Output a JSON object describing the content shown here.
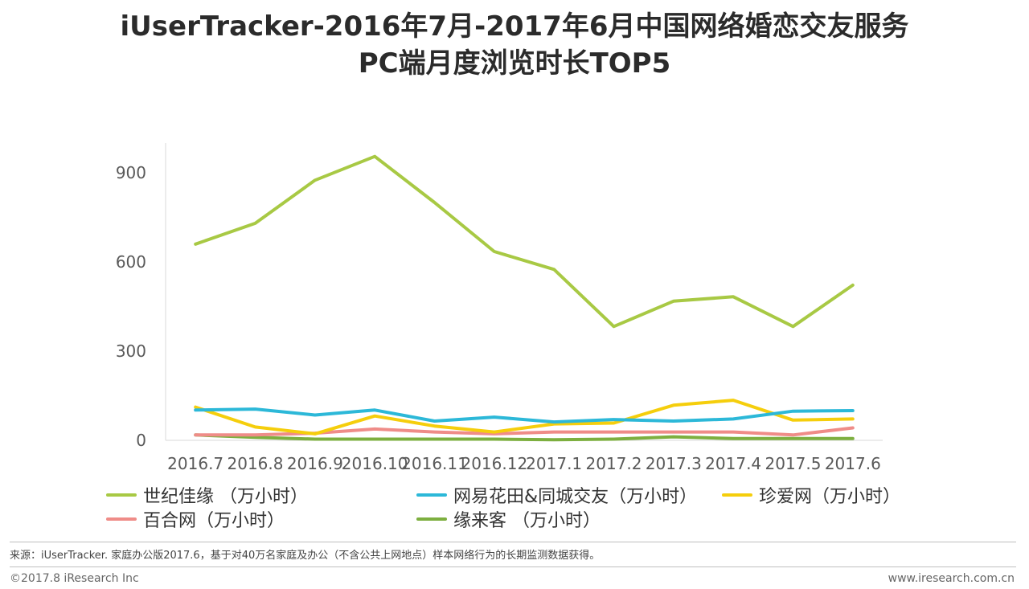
{
  "header": {
    "title_line1": "iUserTracker-2016年7月-2017年6月中国网络婚恋交友服务",
    "title_line2": "PC端月度浏览时长TOP5"
  },
  "chart_data": {
    "type": "line",
    "title": "iUserTracker-2016年7月-2017年6月中国网络婚恋交友服务PC端月度浏览时长TOP5",
    "categories": [
      "2016.7",
      "2016.8",
      "2016.9",
      "2016.10",
      "2016.11",
      "2016.12",
      "2017.1",
      "2017.2",
      "2017.3",
      "2017.4",
      "2017.5",
      "2017.6"
    ],
    "yticks": [
      0,
      300,
      600,
      900
    ],
    "ylim": [
      0,
      1000
    ],
    "xlabel": "",
    "ylabel": "",
    "grid": false,
    "series": [
      {
        "name": "世纪佳缘 （万小时）",
        "color": "#a8c944",
        "values": [
          660,
          730,
          875,
          955,
          800,
          635,
          575,
          383,
          468,
          483,
          383,
          522
        ]
      },
      {
        "name": "网易花田&同城交友（万小时）",
        "color": "#2cb8d8",
        "values": [
          102,
          105,
          85,
          102,
          65,
          78,
          62,
          70,
          65,
          72,
          98,
          100
        ]
      },
      {
        "name": "珍爱网（万小时）",
        "color": "#f5ce0c",
        "values": [
          112,
          45,
          22,
          82,
          48,
          28,
          55,
          58,
          118,
          135,
          68,
          72
        ]
      },
      {
        "name": "百合网（万小时）",
        "color": "#ef8c88",
        "values": [
          18,
          18,
          24,
          38,
          28,
          22,
          28,
          28,
          28,
          28,
          18,
          42
        ]
      },
      {
        "name": "缘来客 （万小时）",
        "color": "#7daf3f",
        "values": [
          18,
          10,
          4,
          4,
          4,
          4,
          2,
          4,
          12,
          6,
          6,
          6
        ]
      }
    ],
    "legend_position": "bottom"
  },
  "footer": {
    "source": "来源：iUserTracker. 家庭办公版2017.6，基于对40万名家庭及办公（不含公共上网地点）样本网络行为的长期监测数据获得。",
    "copyright": "©2017.8 iResearch Inc",
    "website": "www.iresearch.com.cn"
  }
}
